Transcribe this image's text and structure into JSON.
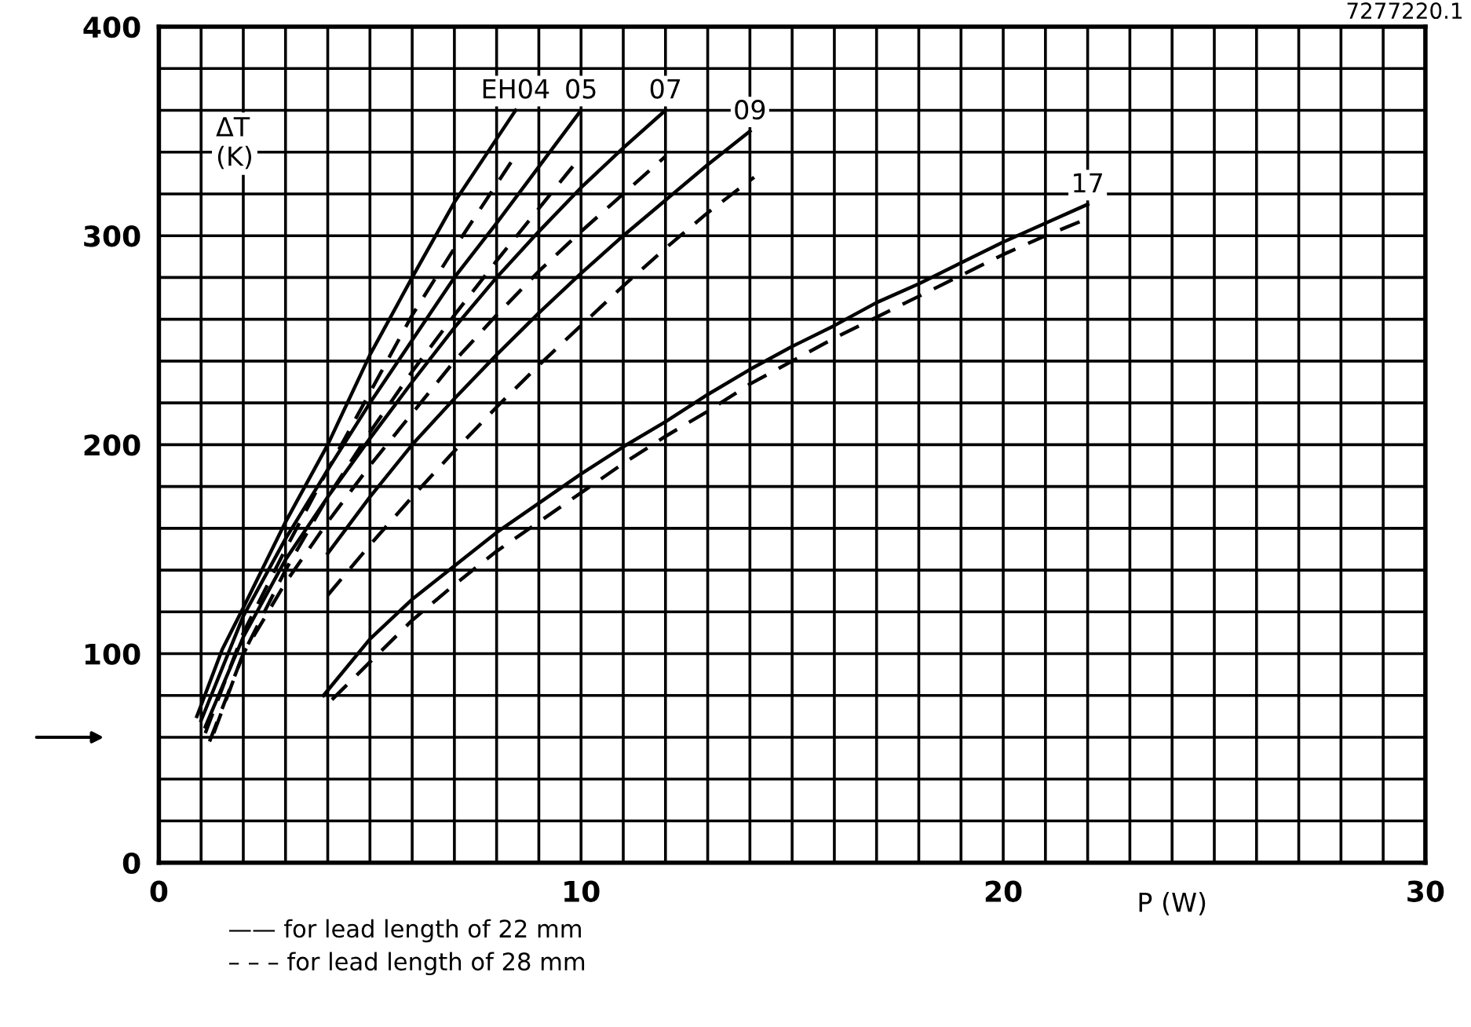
{
  "chart_data": {
    "type": "line",
    "xlabel": "P (W)",
    "ylabel": "ΔT\n(K)",
    "xlim": [
      0,
      30
    ],
    "ylim": [
      0,
      400
    ],
    "xticks": [
      0,
      {
        "value": 1,
        "label": null
      },
      {
        "value": 2,
        "label": null
      },
      {
        "value": 3,
        "label": null
      },
      {
        "value": 4,
        "label": null
      },
      {
        "value": 5,
        "label": null
      },
      {
        "value": 6,
        "label": null
      },
      {
        "value": 7,
        "label": null
      },
      {
        "value": 8,
        "label": null
      },
      {
        "value": 9,
        "label": null
      },
      10,
      {
        "value": 11,
        "label": null
      },
      {
        "value": 12,
        "label": null
      },
      {
        "value": 13,
        "label": null
      },
      {
        "value": 14,
        "label": null
      },
      {
        "value": 15,
        "label": null
      },
      {
        "value": 16,
        "label": null
      },
      {
        "value": 17,
        "label": null
      },
      {
        "value": 18,
        "label": null
      },
      {
        "value": 19,
        "label": null
      },
      20,
      {
        "value": 21,
        "label": null
      },
      {
        "value": 22,
        "label": null
      },
      {
        "value": 23,
        "label": null
      },
      {
        "value": 24,
        "label": null
      },
      {
        "value": 25,
        "label": null
      },
      {
        "value": 26,
        "label": null
      },
      {
        "value": 27,
        "label": null
      },
      {
        "value": 28,
        "label": null
      },
      {
        "value": 29,
        "label": null
      },
      30
    ],
    "yticks": [
      0,
      {
        "value": 20,
        "label": null
      },
      {
        "value": 40,
        "label": null
      },
      {
        "value": 60,
        "label": null
      },
      {
        "value": 80,
        "label": null
      },
      100,
      {
        "value": 120,
        "label": null
      },
      {
        "value": 140,
        "label": null
      },
      {
        "value": 160,
        "label": null
      },
      {
        "value": 180,
        "label": null
      },
      200,
      {
        "value": 220,
        "label": null
      },
      {
        "value": 240,
        "label": null
      },
      {
        "value": 260,
        "label": null
      },
      {
        "value": 280,
        "label": null
      },
      300,
      {
        "value": 320,
        "label": null
      },
      {
        "value": 340,
        "label": null
      },
      {
        "value": 360,
        "label": null
      },
      {
        "value": 380,
        "label": null
      },
      400
    ],
    "grid": true,
    "marker": "none",
    "series": [
      {
        "name": "EH04",
        "color": "#000000",
        "line_style": "solid",
        "x": [
          0.9,
          1.5,
          2,
          3,
          4,
          5,
          6,
          7,
          8.45
        ],
        "values": [
          70,
          102,
          122,
          163,
          200,
          243,
          280,
          316,
          360
        ]
      },
      {
        "color": "#000000",
        "line_style": "dashed",
        "x": [
          1.1,
          2,
          3,
          4,
          5,
          6,
          7,
          8.5
        ],
        "values": [
          62,
          110,
          150,
          188,
          225,
          262,
          294,
          340
        ]
      },
      {
        "name": "05",
        "color": "#000000",
        "line_style": "solid",
        "x": [
          1,
          2,
          3,
          4,
          5,
          6,
          7,
          8,
          9,
          10
        ],
        "values": [
          68,
          118,
          155,
          188,
          220,
          250,
          280,
          306,
          333,
          360
        ]
      },
      {
        "color": "#000000",
        "line_style": "dashed",
        "x": [
          1.2,
          2,
          3,
          4,
          5,
          6,
          7,
          8,
          9,
          10
        ],
        "values": [
          58,
          100,
          140,
          175,
          206,
          235,
          262,
          288,
          313,
          338
        ]
      },
      {
        "name": "07",
        "color": "#000000",
        "line_style": "solid",
        "x": [
          1.1,
          2,
          3,
          4,
          5,
          6,
          7,
          8,
          9,
          10,
          11,
          12
        ],
        "values": [
          65,
          108,
          145,
          175,
          203,
          230,
          256,
          280,
          302,
          323,
          342,
          360
        ]
      },
      {
        "color": "#000000",
        "line_style": "dashed",
        "x": [
          1.3,
          2,
          3,
          4,
          5,
          6,
          7,
          8,
          9,
          10,
          11,
          12
        ],
        "values": [
          62,
          100,
          134,
          163,
          190,
          215,
          240,
          262,
          283,
          302,
          320,
          338
        ]
      },
      {
        "name": "09",
        "color": "#000000",
        "line_style": "solid",
        "x": [
          4,
          5,
          6,
          7,
          8,
          9,
          10,
          11,
          12,
          13,
          14
        ],
        "values": [
          148,
          175,
          200,
          222,
          243,
          263,
          282,
          300,
          317,
          334,
          350
        ]
      },
      {
        "color": "#000000",
        "line_style": "dashed",
        "x": [
          4,
          5,
          6,
          7,
          8,
          9,
          10,
          11,
          12,
          13,
          14.1
        ],
        "values": [
          128,
          152,
          175,
          197,
          218,
          238,
          257,
          276,
          294,
          311,
          328
        ]
      },
      {
        "name": "17",
        "color": "#000000",
        "line_style": "solid",
        "x": [
          3.9,
          5,
          6,
          7,
          8,
          9,
          10,
          11,
          12,
          13,
          14,
          15,
          16,
          17,
          18,
          19,
          20,
          21,
          22
        ],
        "values": [
          80,
          107,
          126,
          142,
          158,
          172,
          186,
          199,
          211,
          224,
          236,
          247,
          257,
          268,
          277,
          287,
          297,
          306,
          315
        ]
      },
      {
        "color": "#000000",
        "line_style": "dashed",
        "x": [
          4.1,
          5,
          6,
          7,
          8,
          9,
          10,
          11,
          12,
          13,
          14,
          15,
          16,
          17,
          18,
          19,
          20,
          21,
          22.1
        ],
        "values": [
          78,
          96,
          116,
          133,
          149,
          163,
          177,
          191,
          204,
          216,
          229,
          240,
          251,
          261,
          271,
          281,
          291,
          300,
          309
        ]
      }
    ],
    "annotations": [
      "7277220.1",
      "—— for lead length of 22 mm",
      "– – – for lead length of 28 mm"
    ]
  }
}
